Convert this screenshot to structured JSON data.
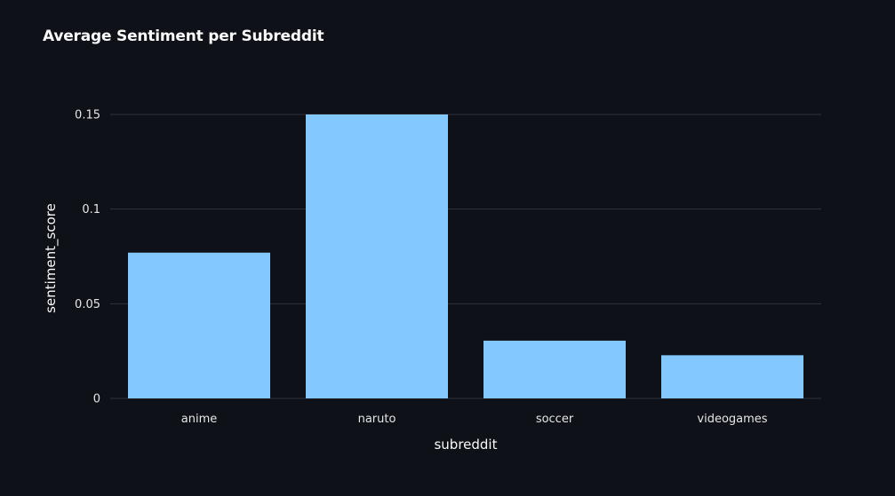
{
  "chart_data": {
    "type": "bar",
    "title": "Average Sentiment per Subreddit",
    "xlabel": "subreddit",
    "ylabel": "sentiment_score",
    "categories": [
      "anime",
      "naruto",
      "soccer",
      "videogames"
    ],
    "values": [
      0.077,
      0.15,
      0.0305,
      0.0228
    ],
    "ylim": [
      0,
      0.16
    ],
    "yticks": [
      0,
      0.05,
      0.1,
      0.15
    ],
    "ytick_labels": [
      "0",
      "0.05",
      "0.1",
      "0.15"
    ],
    "grid": true,
    "legend": "none"
  },
  "colors": {
    "background": "#0e1117",
    "bar": "#83c9ff",
    "grid": "#31333f",
    "text": "#fafafa"
  }
}
